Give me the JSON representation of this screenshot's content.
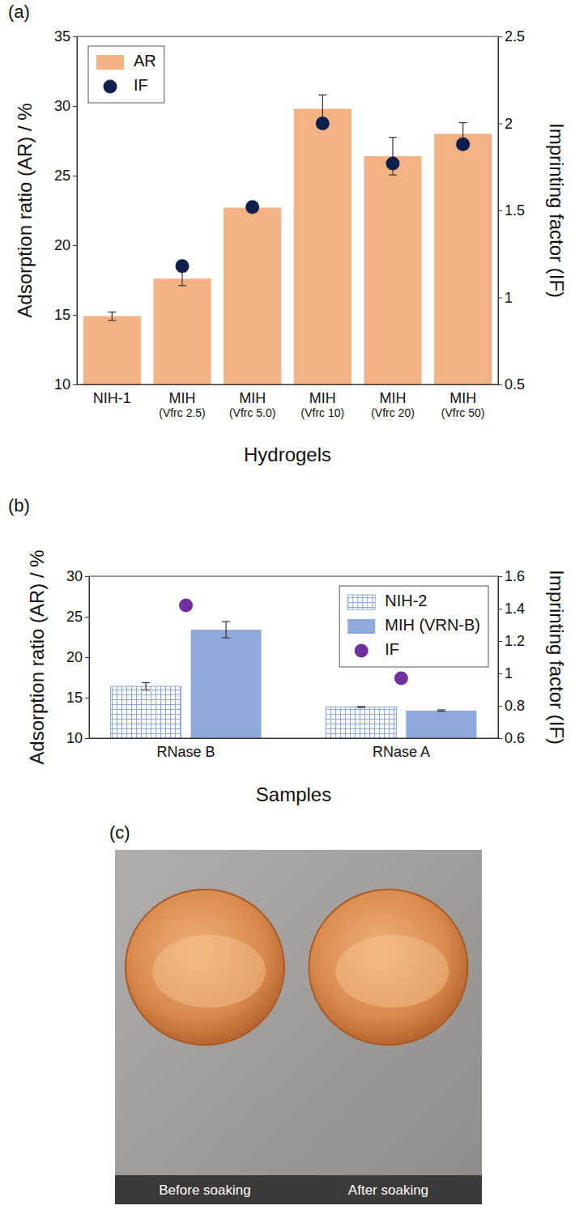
{
  "chart_data": [
    {
      "type": "bar",
      "panel": "(a)",
      "x_label": "Hydrogels",
      "y_label": "Adsorption ratio (AR) / %",
      "y2_label": "Imprinting factor (IF)",
      "categories": [
        "NIH-1",
        "MIH (Vfrc 2.5)",
        "MIH (Vfrc 5.0)",
        "MIH (Vfrc 10)",
        "MIH (Vfrc 20)",
        "MIH (Vfrc 50)"
      ],
      "series": [
        {
          "name": "AR",
          "type": "bar",
          "color": "#f4b183",
          "values": [
            14.9,
            17.6,
            22.7,
            29.8,
            26.4,
            28.0
          ],
          "errors": [
            0.3,
            0.5,
            0.35,
            1.0,
            1.35,
            0.8
          ]
        },
        {
          "name": "IF",
          "type": "scatter",
          "axis": "y2",
          "color": "#0e1f4d",
          "marker": "circle",
          "values": [
            null,
            1.18,
            1.52,
            2.0,
            1.77,
            1.88
          ]
        }
      ],
      "ylim": [
        10,
        35
      ],
      "yticks": [
        10,
        15,
        20,
        25,
        30,
        35
      ],
      "y2lim": [
        0.5,
        2.5
      ],
      "y2ticks": [
        0.5,
        1,
        1.5,
        2,
        2.5
      ],
      "legend": "upper left"
    },
    {
      "type": "bar",
      "panel": "(b)",
      "x_label": "Samples",
      "y_label": "Adsorption ratio (AR) / %",
      "y2_label": "Imprinting factor (IF)",
      "categories": [
        "RNase B",
        "RNase A"
      ],
      "series": [
        {
          "name": "NIH-2",
          "type": "bar",
          "color": "#8eaadb",
          "values": [
            16.4,
            13.85
          ],
          "errors": [
            0.45,
            0.05
          ]
        },
        {
          "name": "MIH (VRN-B)",
          "type": "bar",
          "color": "#8eaadb",
          "values": [
            23.4,
            13.4
          ],
          "errors": [
            1.0,
            0.1
          ]
        },
        {
          "name": "IF",
          "type": "scatter",
          "axis": "y2",
          "color": "#7030a0",
          "marker": "circle",
          "values": [
            1.42,
            0.97
          ]
        }
      ],
      "ylim": [
        10,
        30
      ],
      "yticks": [
        10,
        15,
        20,
        25,
        30
      ],
      "y2lim": [
        0.6,
        1.6
      ],
      "y2ticks": [
        0.6,
        0.8,
        1,
        1.2,
        1.4,
        1.6
      ],
      "legend": "upper right"
    }
  ],
  "photo": {
    "panel": "(c)",
    "labels": [
      "Before soaking",
      "After soaking"
    ]
  }
}
